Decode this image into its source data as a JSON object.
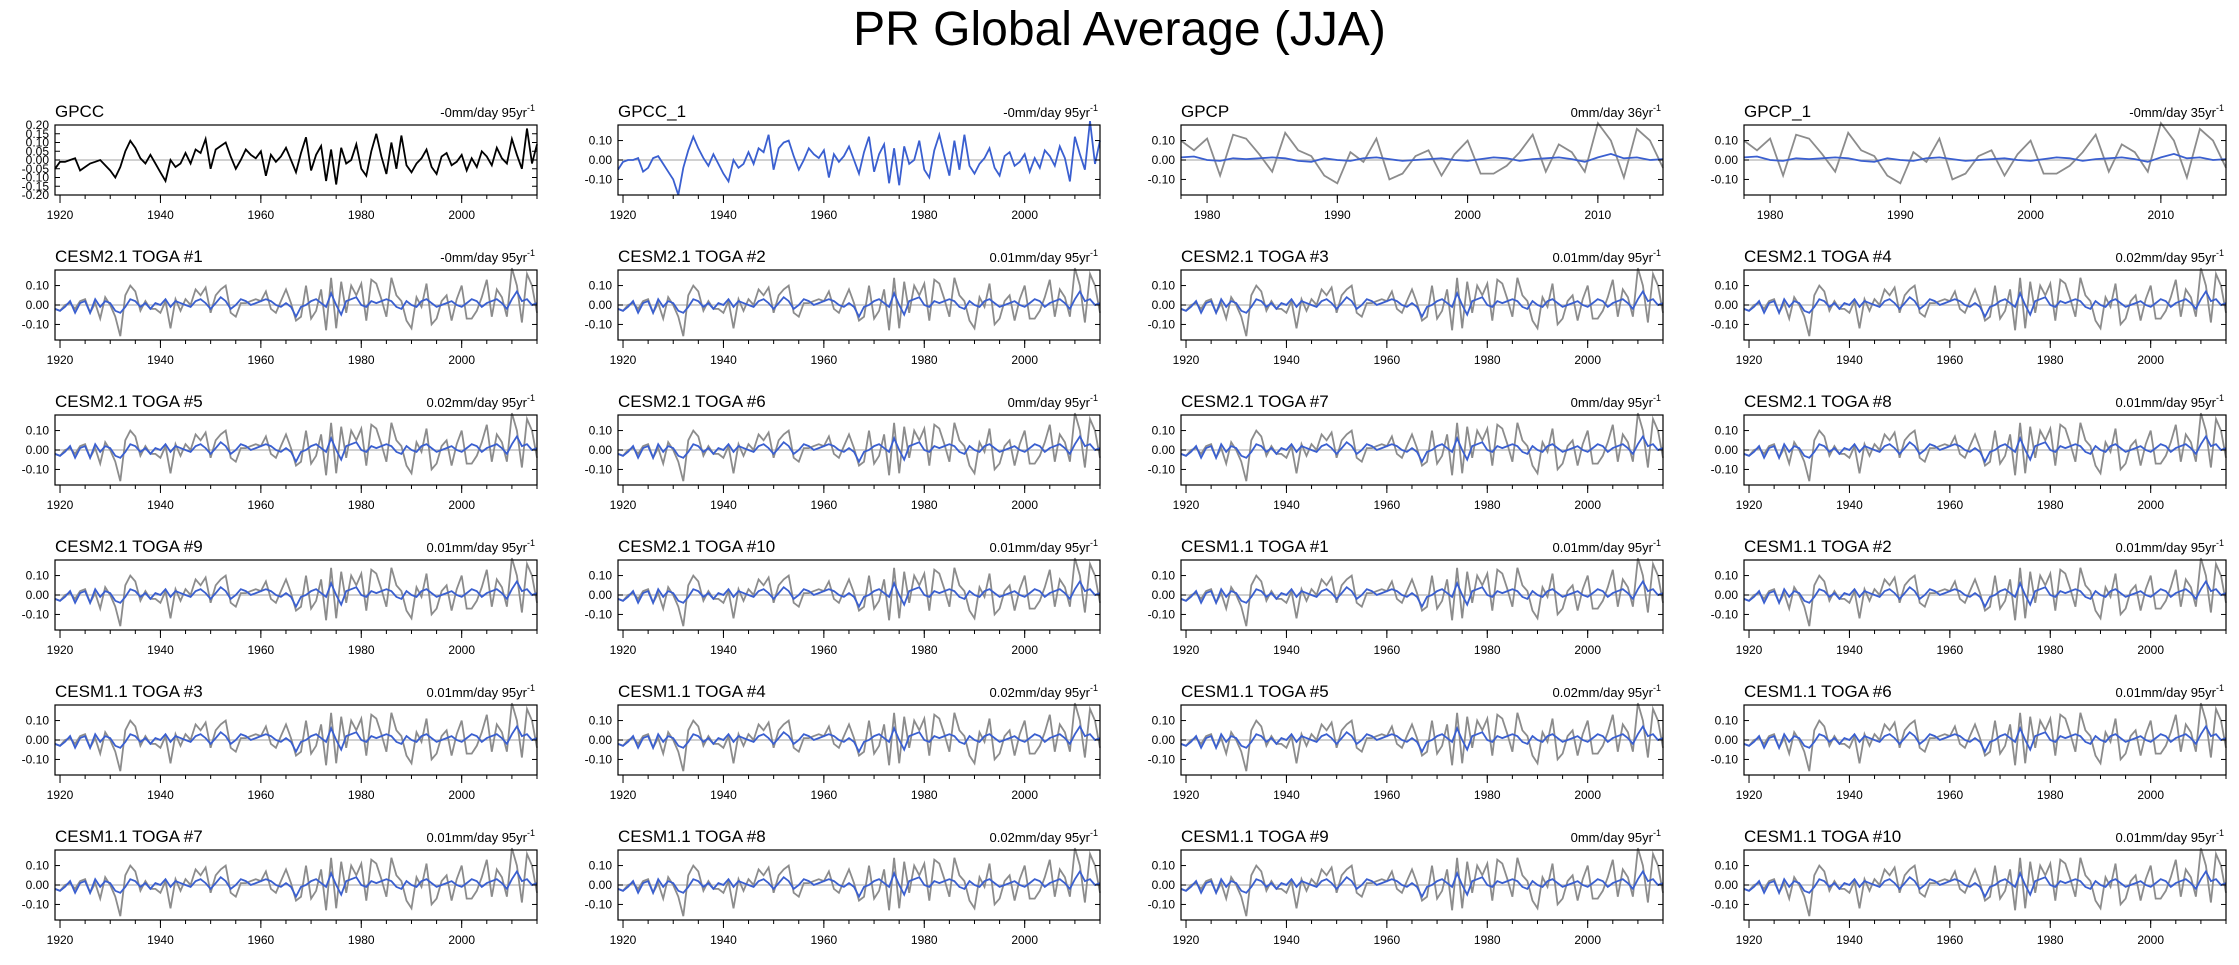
{
  "title": "PR Global Average (JJA)",
  "colors": {
    "observed": "#000000",
    "model": "#3a5fd0",
    "reference": "#8c8c8c",
    "zero_line": "#b4b4b4"
  },
  "chart_data": [
    {
      "type": "line",
      "label": "GPCC",
      "trend": {
        "value": "-0mm/day",
        "years": "95yr",
        "exp": "-1"
      },
      "xlim": [
        1919,
        2015
      ],
      "ylim": [
        -0.2,
        0.2
      ],
      "yticks": [
        "0.20",
        "0.15",
        "0.10",
        "0.05",
        "0.00",
        "-0.05",
        "-0.10",
        "-0.15",
        "-0.20"
      ],
      "xticks": [
        1920,
        1940,
        1960,
        1980,
        2000
      ],
      "series": [
        "observed"
      ]
    },
    {
      "type": "line",
      "label": "GPCC_1",
      "trend": {
        "value": "-0mm/day",
        "years": "95yr",
        "exp": "-1"
      },
      "xlim": [
        1919,
        2015
      ],
      "ylim": [
        -0.18,
        0.18
      ],
      "yticks": [
        "0.10",
        "0.00",
        "-0.10"
      ],
      "xticks": [
        1920,
        1940,
        1960,
        1980,
        2000
      ],
      "series": [
        "model"
      ]
    },
    {
      "type": "line",
      "label": "GPCP",
      "trend": {
        "value": "0mm/day",
        "years": "36yr",
        "exp": "-1"
      },
      "xlim": [
        1978,
        2015
      ],
      "ylim": [
        -0.18,
        0.18
      ],
      "yticks": [
        "0.10",
        "0.00",
        "-0.10"
      ],
      "xticks": [
        1980,
        1990,
        2000,
        2010
      ],
      "series": [
        "reference",
        "model"
      ]
    },
    {
      "type": "line",
      "label": "GPCP_1",
      "trend": {
        "value": "-0mm/day",
        "years": "35yr",
        "exp": "-1"
      },
      "xlim": [
        1978,
        2015
      ],
      "ylim": [
        -0.18,
        0.18
      ],
      "yticks": [
        "0.10",
        "0.00",
        "-0.10"
      ],
      "xticks": [
        1980,
        1990,
        2000,
        2010
      ],
      "series": [
        "reference",
        "model"
      ]
    },
    {
      "type": "line",
      "label": "CESM2.1 TOGA #1",
      "trend": {
        "value": "-0mm/day",
        "years": "95yr",
        "exp": "-1"
      },
      "xlim": [
        1919,
        2015
      ],
      "ylim": [
        -0.18,
        0.18
      ],
      "yticks": [
        "0.10",
        "0.00",
        "-0.10"
      ],
      "xticks": [
        1920,
        1940,
        1960,
        1980,
        2000
      ],
      "series": [
        "reference",
        "model"
      ]
    },
    {
      "type": "line",
      "label": "CESM2.1 TOGA #2",
      "trend": {
        "value": "0.01mm/day",
        "years": "95yr",
        "exp": "-1"
      },
      "xlim": [
        1919,
        2015
      ],
      "ylim": [
        -0.18,
        0.18
      ],
      "yticks": [
        "0.10",
        "0.00",
        "-0.10"
      ],
      "xticks": [
        1920,
        1940,
        1960,
        1980,
        2000
      ],
      "series": [
        "reference",
        "model"
      ]
    },
    {
      "type": "line",
      "label": "CESM2.1 TOGA #3",
      "trend": {
        "value": "0.01mm/day",
        "years": "95yr",
        "exp": "-1"
      },
      "xlim": [
        1919,
        2015
      ],
      "ylim": [
        -0.18,
        0.18
      ],
      "yticks": [
        "0.10",
        "0.00",
        "-0.10"
      ],
      "xticks": [
        1920,
        1940,
        1960,
        1980,
        2000
      ],
      "series": [
        "reference",
        "model"
      ]
    },
    {
      "type": "line",
      "label": "CESM2.1 TOGA #4",
      "trend": {
        "value": "0.02mm/day",
        "years": "95yr",
        "exp": "-1"
      },
      "xlim": [
        1919,
        2015
      ],
      "ylim": [
        -0.18,
        0.18
      ],
      "yticks": [
        "0.10",
        "0.00",
        "-0.10"
      ],
      "xticks": [
        1920,
        1940,
        1960,
        1980,
        2000
      ],
      "series": [
        "reference",
        "model"
      ]
    },
    {
      "type": "line",
      "label": "CESM2.1 TOGA #5",
      "trend": {
        "value": "0.02mm/day",
        "years": "95yr",
        "exp": "-1"
      },
      "xlim": [
        1919,
        2015
      ],
      "ylim": [
        -0.18,
        0.18
      ],
      "yticks": [
        "0.10",
        "0.00",
        "-0.10"
      ],
      "xticks": [
        1920,
        1940,
        1960,
        1980,
        2000
      ],
      "series": [
        "reference",
        "model"
      ]
    },
    {
      "type": "line",
      "label": "CESM2.1 TOGA #6",
      "trend": {
        "value": "0mm/day",
        "years": "95yr",
        "exp": "-1"
      },
      "xlim": [
        1919,
        2015
      ],
      "ylim": [
        -0.18,
        0.18
      ],
      "yticks": [
        "0.10",
        "0.00",
        "-0.10"
      ],
      "xticks": [
        1920,
        1940,
        1960,
        1980,
        2000
      ],
      "series": [
        "reference",
        "model"
      ]
    },
    {
      "type": "line",
      "label": "CESM2.1 TOGA #7",
      "trend": {
        "value": "0mm/day",
        "years": "95yr",
        "exp": "-1"
      },
      "xlim": [
        1919,
        2015
      ],
      "ylim": [
        -0.18,
        0.18
      ],
      "yticks": [
        "0.10",
        "0.00",
        "-0.10"
      ],
      "xticks": [
        1920,
        1940,
        1960,
        1980,
        2000
      ],
      "series": [
        "reference",
        "model"
      ]
    },
    {
      "type": "line",
      "label": "CESM2.1 TOGA #8",
      "trend": {
        "value": "0.01mm/day",
        "years": "95yr",
        "exp": "-1"
      },
      "xlim": [
        1919,
        2015
      ],
      "ylim": [
        -0.18,
        0.18
      ],
      "yticks": [
        "0.10",
        "0.00",
        "-0.10"
      ],
      "xticks": [
        1920,
        1940,
        1960,
        1980,
        2000
      ],
      "series": [
        "reference",
        "model"
      ]
    },
    {
      "type": "line",
      "label": "CESM2.1 TOGA #9",
      "trend": {
        "value": "0.01mm/day",
        "years": "95yr",
        "exp": "-1"
      },
      "xlim": [
        1919,
        2015
      ],
      "ylim": [
        -0.18,
        0.18
      ],
      "yticks": [
        "0.10",
        "0.00",
        "-0.10"
      ],
      "xticks": [
        1920,
        1940,
        1960,
        1980,
        2000
      ],
      "series": [
        "reference",
        "model"
      ]
    },
    {
      "type": "line",
      "label": "CESM2.1 TOGA #10",
      "trend": {
        "value": "0.01mm/day",
        "years": "95yr",
        "exp": "-1"
      },
      "xlim": [
        1919,
        2015
      ],
      "ylim": [
        -0.18,
        0.18
      ],
      "yticks": [
        "0.10",
        "0.00",
        "-0.10"
      ],
      "xticks": [
        1920,
        1940,
        1960,
        1980,
        2000
      ],
      "series": [
        "reference",
        "model"
      ]
    },
    {
      "type": "line",
      "label": "CESM1.1 TOGA #1",
      "trend": {
        "value": "0.01mm/day",
        "years": "95yr",
        "exp": "-1"
      },
      "xlim": [
        1919,
        2015
      ],
      "ylim": [
        -0.18,
        0.18
      ],
      "yticks": [
        "0.10",
        "0.00",
        "-0.10"
      ],
      "xticks": [
        1920,
        1940,
        1960,
        1980,
        2000
      ],
      "series": [
        "reference",
        "model"
      ]
    },
    {
      "type": "line",
      "label": "CESM1.1 TOGA #2",
      "trend": {
        "value": "0.01mm/day",
        "years": "95yr",
        "exp": "-1"
      },
      "xlim": [
        1919,
        2015
      ],
      "ylim": [
        -0.18,
        0.18
      ],
      "yticks": [
        "0.10",
        "0.00",
        "-0.10"
      ],
      "xticks": [
        1920,
        1940,
        1960,
        1980,
        2000
      ],
      "series": [
        "reference",
        "model"
      ]
    },
    {
      "type": "line",
      "label": "CESM1.1 TOGA #3",
      "trend": {
        "value": "0.01mm/day",
        "years": "95yr",
        "exp": "-1"
      },
      "xlim": [
        1919,
        2015
      ],
      "ylim": [
        -0.18,
        0.18
      ],
      "yticks": [
        "0.10",
        "0.00",
        "-0.10"
      ],
      "xticks": [
        1920,
        1940,
        1960,
        1980,
        2000
      ],
      "series": [
        "reference",
        "model"
      ]
    },
    {
      "type": "line",
      "label": "CESM1.1 TOGA #4",
      "trend": {
        "value": "0.02mm/day",
        "years": "95yr",
        "exp": "-1"
      },
      "xlim": [
        1919,
        2015
      ],
      "ylim": [
        -0.18,
        0.18
      ],
      "yticks": [
        "0.10",
        "0.00",
        "-0.10"
      ],
      "xticks": [
        1920,
        1940,
        1960,
        1980,
        2000
      ],
      "series": [
        "reference",
        "model"
      ]
    },
    {
      "type": "line",
      "label": "CESM1.1 TOGA #5",
      "trend": {
        "value": "0.02mm/day",
        "years": "95yr",
        "exp": "-1"
      },
      "xlim": [
        1919,
        2015
      ],
      "ylim": [
        -0.18,
        0.18
      ],
      "yticks": [
        "0.10",
        "0.00",
        "-0.10"
      ],
      "xticks": [
        1920,
        1940,
        1960,
        1980,
        2000
      ],
      "series": [
        "reference",
        "model"
      ]
    },
    {
      "type": "line",
      "label": "CESM1.1 TOGA #6",
      "trend": {
        "value": "0.01mm/day",
        "years": "95yr",
        "exp": "-1"
      },
      "xlim": [
        1919,
        2015
      ],
      "ylim": [
        -0.18,
        0.18
      ],
      "yticks": [
        "0.10",
        "0.00",
        "-0.10"
      ],
      "xticks": [
        1920,
        1940,
        1960,
        1980,
        2000
      ],
      "series": [
        "reference",
        "model"
      ]
    },
    {
      "type": "line",
      "label": "CESM1.1 TOGA #7",
      "trend": {
        "value": "0.01mm/day",
        "years": "95yr",
        "exp": "-1"
      },
      "xlim": [
        1919,
        2015
      ],
      "ylim": [
        -0.18,
        0.18
      ],
      "yticks": [
        "0.10",
        "0.00",
        "-0.10"
      ],
      "xticks": [
        1920,
        1940,
        1960,
        1980,
        2000
      ],
      "series": [
        "reference",
        "model"
      ]
    },
    {
      "type": "line",
      "label": "CESM1.1 TOGA #8",
      "trend": {
        "value": "0.02mm/day",
        "years": "95yr",
        "exp": "-1"
      },
      "xlim": [
        1919,
        2015
      ],
      "ylim": [
        -0.18,
        0.18
      ],
      "yticks": [
        "0.10",
        "0.00",
        "-0.10"
      ],
      "xticks": [
        1920,
        1940,
        1960,
        1980,
        2000
      ],
      "series": [
        "reference",
        "model"
      ]
    },
    {
      "type": "line",
      "label": "CESM1.1 TOGA #9",
      "trend": {
        "value": "0mm/day",
        "years": "95yr",
        "exp": "-1"
      },
      "xlim": [
        1919,
        2015
      ],
      "ylim": [
        -0.18,
        0.18
      ],
      "yticks": [
        "0.10",
        "0.00",
        "-0.10"
      ],
      "xticks": [
        1920,
        1940,
        1960,
        1980,
        2000
      ],
      "series": [
        "reference",
        "model"
      ]
    },
    {
      "type": "line",
      "label": "CESM1.1 TOGA #10",
      "trend": {
        "value": "0.01mm/day",
        "years": "95yr",
        "exp": "-1"
      },
      "xlim": [
        1919,
        2015
      ],
      "ylim": [
        -0.18,
        0.18
      ],
      "yticks": [
        "0.10",
        "0.00",
        "-0.10"
      ],
      "xticks": [
        1920,
        1940,
        1960,
        1980,
        2000
      ],
      "series": [
        "reference",
        "model"
      ]
    }
  ],
  "series_data": {
    "observed_1919_2015": [
      -0.05,
      -0.01,
      -0.01,
      0.0,
      0.01,
      -0.06,
      -0.04,
      -0.02,
      -0.01,
      0.0,
      -0.03,
      -0.06,
      -0.1,
      -0.04,
      0.05,
      0.11,
      0.07,
      0.01,
      -0.02,
      0.03,
      -0.02,
      -0.07,
      -0.12,
      0.0,
      -0.04,
      -0.02,
      0.04,
      -0.02,
      0.06,
      0.04,
      0.12,
      -0.05,
      0.06,
      0.08,
      0.1,
      0.02,
      -0.05,
      0.0,
      0.06,
      0.03,
      0.01,
      0.05,
      -0.09,
      0.03,
      -0.01,
      0.02,
      0.07,
      0.0,
      -0.07,
      0.04,
      0.13,
      -0.06,
      0.03,
      0.08,
      -0.12,
      0.06,
      -0.14,
      0.07,
      -0.02,
      0.0,
      0.09,
      -0.05,
      -0.09,
      0.05,
      0.15,
      0.02,
      -0.08,
      0.1,
      -0.05,
      0.14,
      -0.03,
      -0.07,
      -0.02,
      0.01,
      0.06,
      -0.04,
      -0.08,
      0.02,
      0.04,
      -0.03,
      -0.01,
      0.03,
      -0.06,
      0.01,
      -0.04,
      0.05,
      0.02,
      -0.03,
      0.07,
      0.01,
      -0.02,
      0.12,
      0.03,
      -0.05,
      0.18,
      -0.02,
      0.09
    ],
    "reference_1919_2015": [
      -0.02,
      -0.03,
      0.0,
      0.01,
      -0.02,
      0.02,
      0.03,
      -0.04,
      0.01,
      -0.07,
      0.04,
      0.0,
      -0.06,
      -0.16,
      0.05,
      0.1,
      0.07,
      -0.03,
      0.02,
      -0.02,
      -0.02,
      -0.04,
      0.02,
      -0.12,
      0.03,
      -0.03,
      0.03,
      0.0,
      0.08,
      0.05,
      0.09,
      -0.04,
      0.05,
      0.08,
      0.1,
      -0.04,
      -0.06,
      0.01,
      0.01,
      0.02,
      0.03,
      0.02,
      0.07,
      -0.02,
      -0.04,
      0.02,
      0.08,
      0.01,
      -0.08,
      -0.06,
      0.1,
      -0.07,
      -0.03,
      0.08,
      -0.13,
      0.14,
      -0.12,
      0.12,
      -0.04,
      0.1,
      0.05,
      0.11,
      -0.08,
      0.13,
      0.11,
      0.03,
      -0.06,
      0.14,
      0.05,
      0.02,
      -0.08,
      -0.12,
      0.04,
      -0.01,
      0.11,
      -0.1,
      -0.07,
      0.02,
      0.05,
      -0.08,
      0.03,
      0.1,
      -0.07,
      -0.07,
      -0.03,
      0.04,
      0.13,
      -0.06,
      0.08,
      0.04,
      -0.06,
      0.19,
      0.1,
      -0.09,
      0.16,
      0.1,
      -0.04
    ],
    "model_1919_2015": [
      -0.02,
      -0.03,
      -0.01,
      0.02,
      -0.04,
      0.01,
      0.02,
      -0.04,
      0.03,
      -0.01,
      0.02,
      0.01,
      -0.03,
      -0.04,
      -0.01,
      0.03,
      0.02,
      -0.01,
      0.01,
      -0.02,
      0.01,
      0.0,
      0.03,
      -0.01,
      0.02,
      0.01,
      0.0,
      -0.01,
      0.02,
      0.03,
      0.01,
      -0.02,
      0.01,
      0.04,
      0.02,
      -0.02,
      0.0,
      0.03,
      0.02,
      0.0,
      0.01,
      0.02,
      0.03,
      0.02,
      0.0,
      -0.01,
      0.01,
      -0.01,
      -0.06,
      -0.01,
      0.0,
      0.02,
      0.03,
      0.01,
      -0.01,
      0.06,
      0.0,
      -0.05,
      0.02,
      0.03,
      0.04,
      0.0,
      -0.01,
      0.02,
      0.01,
      0.02,
      0.03,
      0.02,
      -0.01,
      -0.02,
      0.02,
      0.0,
      -0.01,
      0.02,
      0.03,
      0.01,
      -0.01,
      0.0,
      0.01,
      0.02,
      0.0,
      -0.01,
      0.01,
      0.03,
      0.02,
      -0.01,
      0.01,
      0.02,
      0.03,
      0.01,
      -0.02,
      0.03,
      0.07,
      0.02,
      0.03,
      0.0,
      0.01
    ],
    "gpcc1_model_1919_2015": [
      -0.05,
      -0.01,
      0.0,
      0.0,
      0.01,
      -0.06,
      -0.04,
      0.01,
      0.02,
      -0.02,
      -0.06,
      -0.1,
      -0.18,
      -0.04,
      0.05,
      0.12,
      0.06,
      0.01,
      -0.03,
      0.03,
      -0.02,
      -0.07,
      -0.11,
      0.0,
      -0.04,
      -0.02,
      0.04,
      -0.02,
      0.06,
      0.04,
      0.13,
      -0.05,
      0.06,
      0.09,
      0.1,
      0.02,
      -0.05,
      0.0,
      0.06,
      0.03,
      0.01,
      0.05,
      -0.09,
      0.03,
      -0.01,
      0.02,
      0.07,
      0.0,
      -0.07,
      0.04,
      0.12,
      -0.06,
      0.03,
      0.08,
      -0.12,
      0.06,
      -0.13,
      0.07,
      -0.02,
      0.0,
      0.1,
      -0.05,
      -0.09,
      0.05,
      0.13,
      0.02,
      -0.08,
      0.1,
      -0.05,
      0.13,
      -0.03,
      -0.07,
      -0.02,
      0.01,
      0.06,
      -0.04,
      -0.08,
      0.02,
      0.04,
      -0.03,
      -0.01,
      0.03,
      -0.06,
      0.01,
      -0.04,
      0.05,
      0.02,
      -0.03,
      0.07,
      0.01,
      -0.11,
      0.12,
      0.03,
      -0.05,
      0.2,
      -0.02,
      0.1
    ]
  }
}
